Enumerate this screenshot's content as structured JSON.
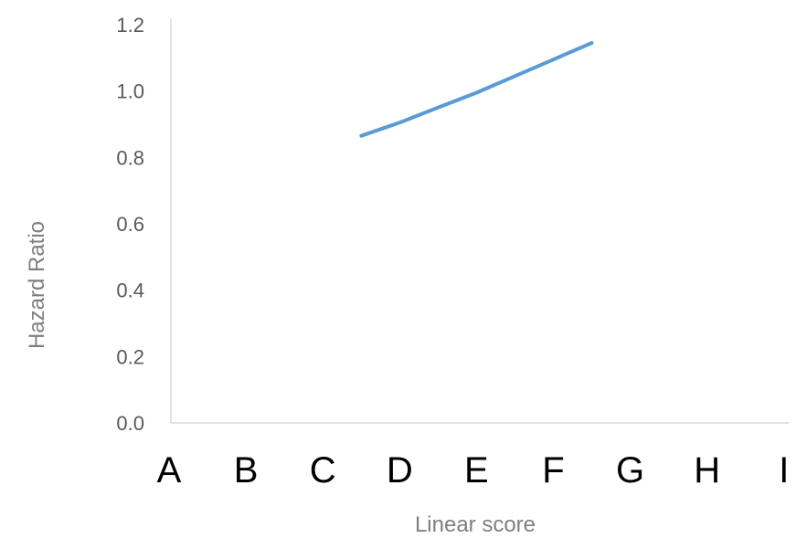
{
  "chart_data": {
    "type": "line",
    "title": "",
    "xlabel": "Linear score",
    "ylabel": "Hazard Ratio",
    "categories": [
      "A",
      "B",
      "C",
      "D",
      "E",
      "F",
      "G",
      "H",
      "I"
    ],
    "yticks": [
      "0.0",
      "0.2",
      "0.4",
      "0.6",
      "0.8",
      "1.0",
      "1.2"
    ],
    "ylim": [
      0,
      1.2
    ],
    "grid": false,
    "legend": "none",
    "series": [
      {
        "color": "#5b9bd5",
        "x": [
          2.5,
          3.0,
          3.5,
          4.0,
          4.5,
          5.0,
          5.5
        ],
        "y": [
          0.865,
          0.905,
          0.95,
          0.995,
          1.045,
          1.095,
          1.145
        ]
      }
    ],
    "colors": {
      "axis": "#d9d9d9",
      "line": "#5b9bd5"
    }
  }
}
